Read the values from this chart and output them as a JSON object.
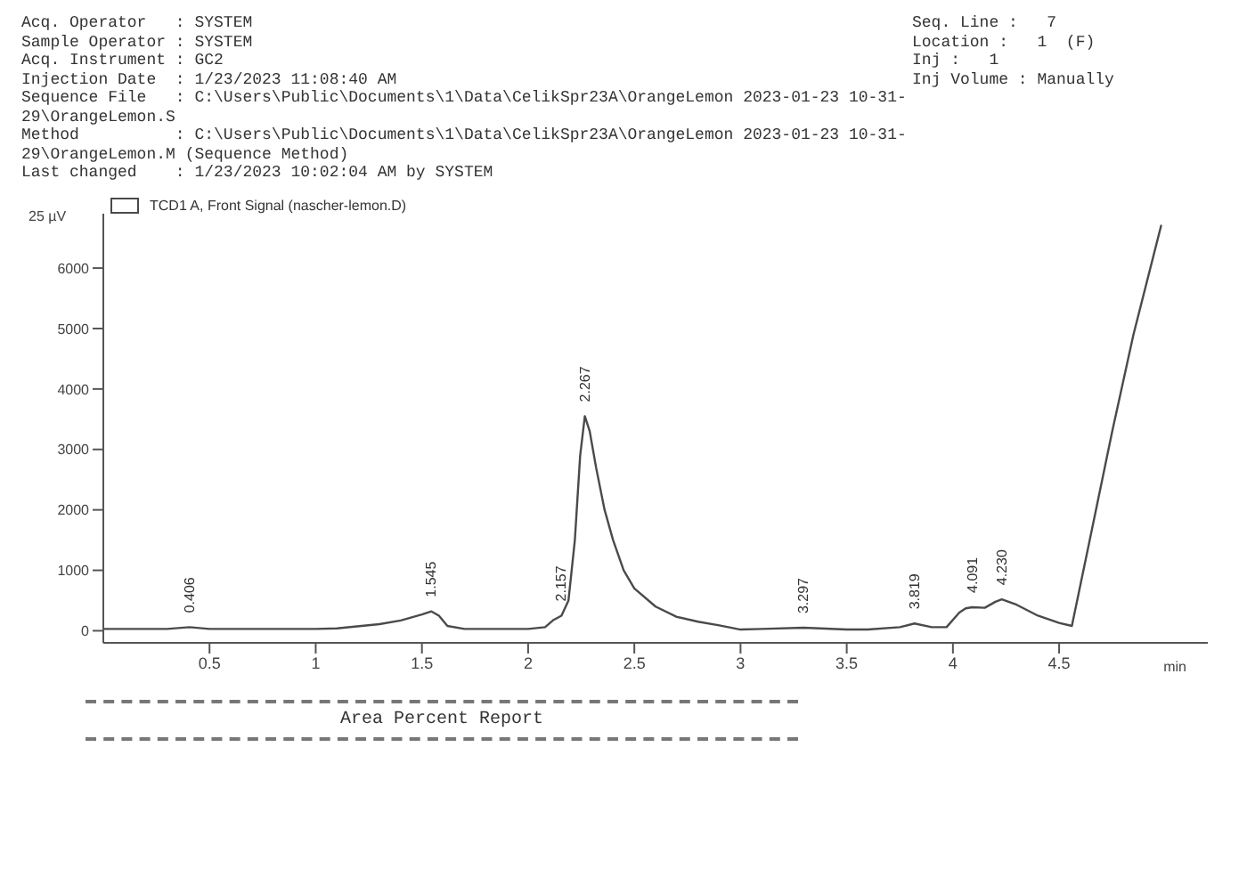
{
  "chart_data": {
    "type": "line",
    "ylabel": "25 µV",
    "xlabel": "min",
    "legend": "top left",
    "marker": "none",
    "line_style": "solid",
    "xlim": [
      0,
      5.2
    ],
    "xticks": [
      0.5,
      1,
      1.5,
      2,
      2.5,
      3,
      3.5,
      4,
      4.5
    ],
    "ylim": [
      -200,
      6900
    ],
    "yticks": [
      0,
      1000,
      2000,
      3000,
      4000,
      5000,
      6000
    ],
    "series": [
      {
        "name": "TCD1 A, Front Signal (nascher-lemon.D)",
        "color": "#4a4a4a",
        "x": [
          0,
          0.3,
          0.406,
          0.5,
          1.0,
          1.1,
          1.3,
          1.4,
          1.5,
          1.545,
          1.58,
          1.62,
          1.7,
          2.0,
          2.08,
          2.12,
          2.157,
          2.19,
          2.22,
          2.245,
          2.267,
          2.29,
          2.32,
          2.36,
          2.4,
          2.45,
          2.5,
          2.6,
          2.7,
          2.8,
          2.9,
          3.0,
          3.1,
          3.297,
          3.5,
          3.6,
          3.75,
          3.819,
          3.9,
          3.97,
          4.03,
          4.06,
          4.091,
          4.15,
          4.2,
          4.23,
          4.3,
          4.4,
          4.5,
          4.56,
          4.65,
          4.75,
          4.85,
          4.98
        ],
        "values": [
          30,
          30,
          60,
          30,
          30,
          40,
          110,
          170,
          270,
          320,
          250,
          80,
          30,
          30,
          60,
          180,
          250,
          500,
          1500,
          2900,
          3550,
          3300,
          2700,
          2000,
          1500,
          1000,
          700,
          400,
          230,
          150,
          90,
          20,
          30,
          50,
          20,
          20,
          60,
          120,
          60,
          60,
          300,
          370,
          390,
          380,
          480,
          520,
          430,
          250,
          130,
          80,
          1600,
          3300,
          4900,
          6700
        ]
      }
    ],
    "annotations": [
      "Acq. Operator   : SYSTEM",
      "Sample Operator : SYSTEM",
      "Acq. Instrument : GC2",
      "Injection Date  : 1/23/2023 11:08:40 AM",
      "Sequence File   : C:\\Users\\Public\\Documents\\1\\Data\\CelikSpr23A\\OrangeLemon 2023-01-23 10-31-29\\OrangeLemon.S",
      "Method          : C:\\Users\\Public\\Documents\\1\\Data\\CelikSpr23A\\OrangeLemon 2023-01-23 10-31-29\\OrangeLemon.M (Sequence Method)",
      "Last changed    : 1/23/2023 10:02:04 AM by SYSTEM",
      "Seq. Line :   7",
      "Location :   1  (F)",
      "Inj :   1",
      "Inj Volume : Manually",
      "Area Percent Report",
      {
        "text": "0.406",
        "x": 0.406,
        "y": 60
      },
      {
        "text": "1.545",
        "x": 1.545,
        "y": 320
      },
      {
        "text": "2.157",
        "x": 2.157,
        "y": 250
      },
      {
        "text": "2.267",
        "x": 2.267,
        "y": 3550
      },
      {
        "text": "3.297",
        "x": 3.297,
        "y": 50
      },
      {
        "text": "3.819",
        "x": 3.819,
        "y": 120
      },
      {
        "text": "4.091",
        "x": 4.091,
        "y": 390
      },
      {
        "text": "4.230",
        "x": 4.23,
        "y": 520
      }
    ]
  }
}
